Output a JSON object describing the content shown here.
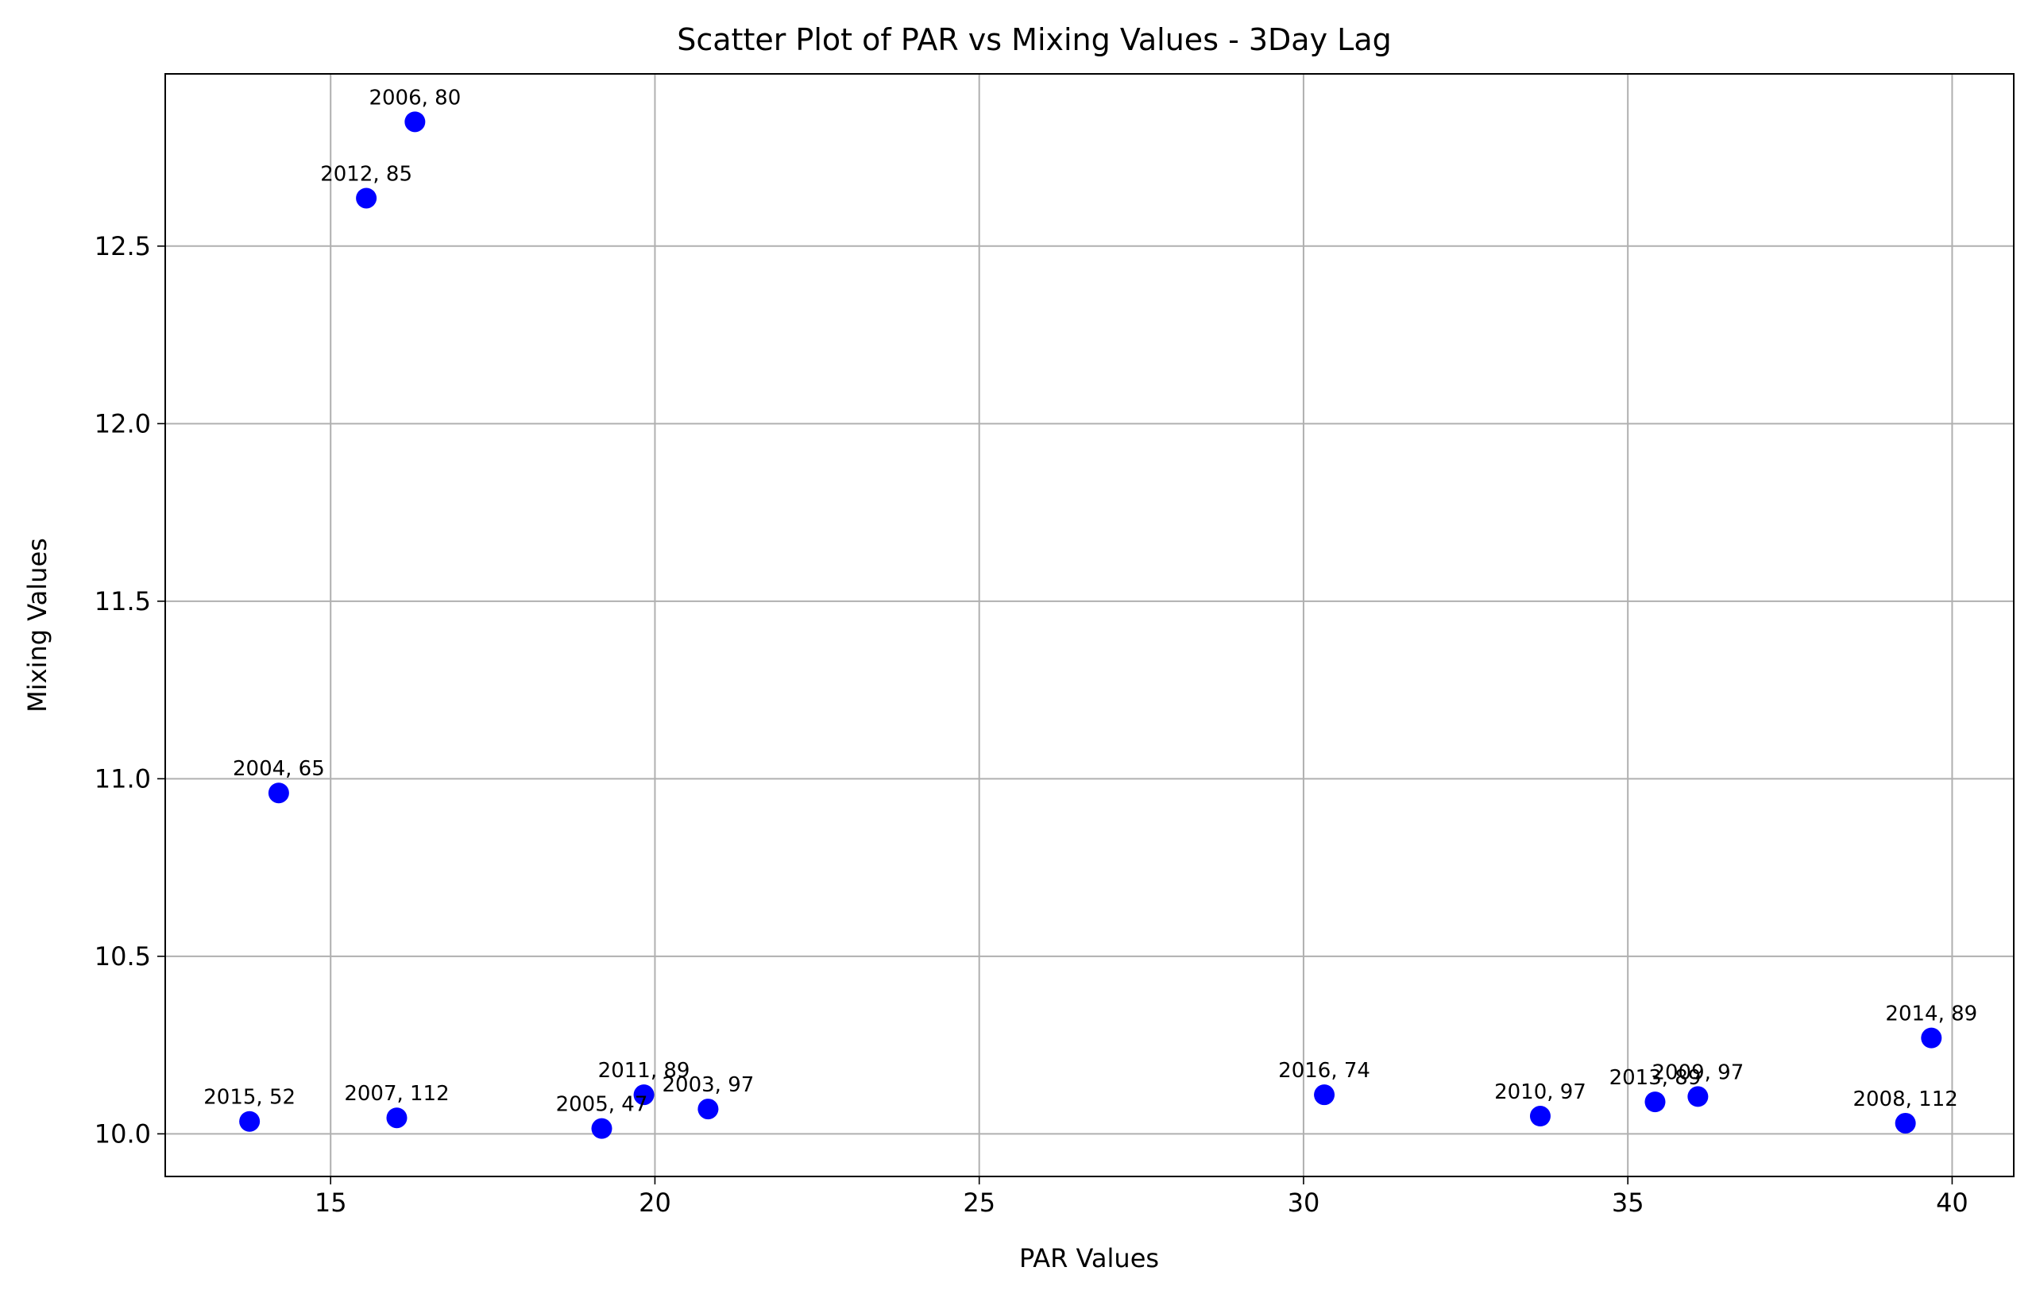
{
  "chart_data": {
    "type": "scatter",
    "title": "Scatter Plot of PAR vs Mixing Values - 3Day Lag",
    "xlabel": "PAR Values",
    "ylabel": "Mixing Values",
    "xlim": [
      12.45,
      40.95
    ],
    "ylim": [
      9.88,
      12.985
    ],
    "xticks": [
      15,
      20,
      25,
      30,
      35,
      40
    ],
    "xtick_labels": [
      "15",
      "20",
      "25",
      "30",
      "35",
      "40"
    ],
    "yticks": [
      10.0,
      10.5,
      11.0,
      11.5,
      12.0,
      12.5
    ],
    "ytick_labels": [
      "10.0",
      "10.5",
      "11.0",
      "11.5",
      "12.0",
      "12.5"
    ],
    "grid": true,
    "color": "#0000ff",
    "points": [
      {
        "x": 16.3,
        "y": 12.85,
        "label": "2006, 80"
      },
      {
        "x": 15.55,
        "y": 12.635,
        "label": "2012, 85"
      },
      {
        "x": 14.2,
        "y": 10.96,
        "label": "2004, 65"
      },
      {
        "x": 13.75,
        "y": 10.035,
        "label": "2015, 52"
      },
      {
        "x": 16.02,
        "y": 10.045,
        "label": "2007, 112"
      },
      {
        "x": 19.18,
        "y": 10.015,
        "label": "2005, 47"
      },
      {
        "x": 19.83,
        "y": 10.11,
        "label": "2011, 89"
      },
      {
        "x": 20.82,
        "y": 10.07,
        "label": "2003, 97"
      },
      {
        "x": 30.32,
        "y": 10.11,
        "label": "2016, 74"
      },
      {
        "x": 33.65,
        "y": 10.05,
        "label": "2010, 97"
      },
      {
        "x": 35.42,
        "y": 10.09,
        "label": "2013, 89"
      },
      {
        "x": 36.08,
        "y": 10.105,
        "label": "2009, 97"
      },
      {
        "x": 39.28,
        "y": 10.03,
        "label": "2008, 112"
      },
      {
        "x": 39.68,
        "y": 10.27,
        "label": "2014, 89"
      }
    ]
  }
}
